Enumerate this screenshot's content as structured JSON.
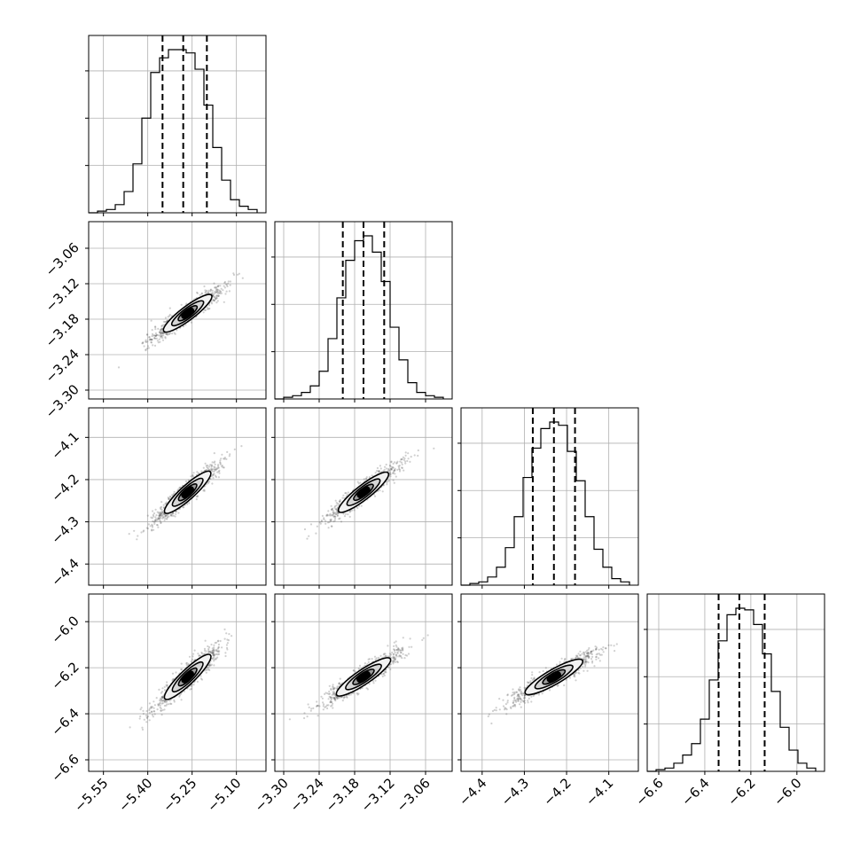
{
  "chart_data": {
    "type": "corner",
    "grid": true,
    "parameters": [
      {
        "range": [
          -5.6,
          -5.0
        ],
        "ticks": [
          -5.55,
          -5.4,
          -5.25,
          -5.1
        ],
        "tick_labels": [
          "−5.55",
          "−5.40",
          "−5.25",
          "−5.10"
        ],
        "quantiles": [
          -5.35,
          -5.28,
          -5.2
        ],
        "hist": [
          0.01,
          0.02,
          0.05,
          0.13,
          0.3,
          0.58,
          0.86,
          0.95,
          1.0,
          1.0,
          0.98,
          0.88,
          0.66,
          0.4,
          0.2,
          0.08,
          0.04,
          0.02
        ]
      },
      {
        "range": [
          -3.315,
          -3.015
        ],
        "ticks": [
          -3.3,
          -3.24,
          -3.18,
          -3.12,
          -3.06
        ],
        "tick_labels": [
          "−3.30",
          "−3.24",
          "−3.18",
          "−3.12",
          "−3.06"
        ],
        "quantiles": [
          -3.2,
          -3.165,
          -3.13
        ],
        "hist": [
          0.01,
          0.02,
          0.04,
          0.08,
          0.17,
          0.37,
          0.62,
          0.85,
          0.97,
          1.0,
          0.9,
          0.72,
          0.44,
          0.24,
          0.1,
          0.04,
          0.02,
          0.01
        ]
      },
      {
        "range": [
          -4.45,
          -4.03
        ],
        "ticks": [
          -4.4,
          -4.3,
          -4.2,
          -4.1
        ],
        "tick_labels": [
          "−4.4",
          "−4.3",
          "−4.2",
          "−4.1"
        ],
        "quantiles": [
          -4.28,
          -4.23,
          -4.18
        ],
        "hist": [
          0.01,
          0.02,
          0.05,
          0.11,
          0.23,
          0.42,
          0.66,
          0.84,
          0.96,
          1.0,
          0.98,
          0.82,
          0.64,
          0.42,
          0.22,
          0.11,
          0.04,
          0.02
        ]
      },
      {
        "range": [
          -6.65,
          -5.88
        ],
        "ticks": [
          -6.6,
          -6.4,
          -6.2,
          -6.0
        ],
        "tick_labels": [
          "−6.6",
          "−6.4",
          "−6.2",
          "−6.0"
        ],
        "quantiles": [
          -6.34,
          -6.25,
          -6.14
        ],
        "hist": [
          0.01,
          0.02,
          0.05,
          0.1,
          0.17,
          0.32,
          0.56,
          0.8,
          0.96,
          1.0,
          0.99,
          0.9,
          0.72,
          0.49,
          0.27,
          0.13,
          0.05,
          0.02
        ]
      }
    ],
    "pairs": [
      {
        "row": 1,
        "col": 0,
        "center": [
          -5.265,
          -3.17
        ],
        "sd": [
          0.07,
          0.037
        ],
        "angle_deg": -37
      },
      {
        "row": 2,
        "col": 0,
        "center": [
          -5.265,
          -4.23
        ],
        "sd": [
          0.07,
          0.054
        ],
        "angle_deg": -42
      },
      {
        "row": 2,
        "col": 1,
        "center": [
          -3.165,
          -4.23
        ],
        "sd": [
          0.037,
          0.054
        ],
        "angle_deg": -38
      },
      {
        "row": 3,
        "col": 0,
        "center": [
          -5.265,
          -6.24
        ],
        "sd": [
          0.07,
          0.105
        ],
        "angle_deg": -44
      },
      {
        "row": 3,
        "col": 1,
        "center": [
          -3.165,
          -6.24
        ],
        "sd": [
          0.037,
          0.105
        ],
        "angle_deg": -34
      },
      {
        "row": 3,
        "col": 2,
        "center": [
          -4.23,
          -6.24
        ],
        "sd": [
          0.054,
          0.105
        ],
        "angle_deg": -30
      }
    ]
  }
}
